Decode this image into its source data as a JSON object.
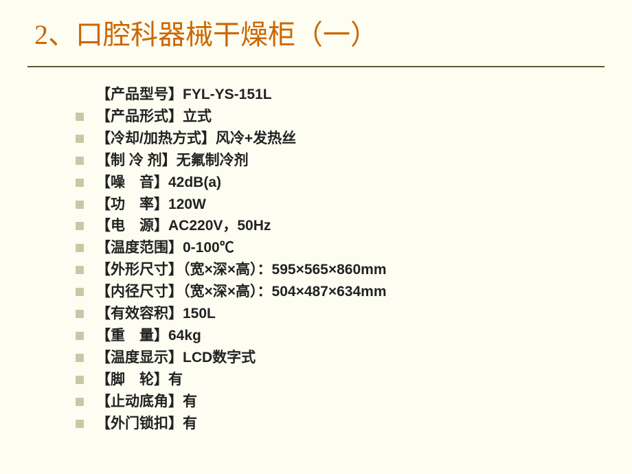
{
  "title": "2、口腔科器械干燥柜（一）",
  "first_item": {
    "label": "【产品型号】",
    "value": "FYL-YS-151L"
  },
  "specs": [
    {
      "label": "【产品形式】",
      "value": "立式"
    },
    {
      "label": "【冷却/加热方式】",
      "value": "风冷+发热丝"
    },
    {
      "label": "【制 冷 剂】",
      "value": "无氟制冷剂"
    },
    {
      "label": "【噪　音】",
      "value": "42dB(a)"
    },
    {
      "label": "【功　率】",
      "value": "120W"
    },
    {
      "label": "【电　源】",
      "value": "AC220V，50Hz"
    },
    {
      "label": "【温度范围】",
      "value": "0-100℃"
    },
    {
      "label": "【外形尺寸】",
      "value": "（宽×深×高）：595×565×860mm"
    },
    {
      "label": "【内径尺寸】",
      "value": "（宽×深×高）：504×487×634mm"
    },
    {
      "label": "【有效容积】",
      "value": "150L"
    },
    {
      "label": "【重　量】",
      "value": "64kg"
    },
    {
      "label": "【温度显示】",
      "value": "LCD数字式"
    },
    {
      "label": "【脚　轮】",
      "value": "有"
    },
    {
      "label": "【止动底角】",
      "value": "有"
    },
    {
      "label": "【外门锁扣】",
      "value": "有"
    }
  ],
  "colors": {
    "background": "#fdfdf2",
    "title": "#cc6600",
    "underline": "#5a5a2e",
    "bullet": "#c8c8a8",
    "text": "#222222"
  }
}
